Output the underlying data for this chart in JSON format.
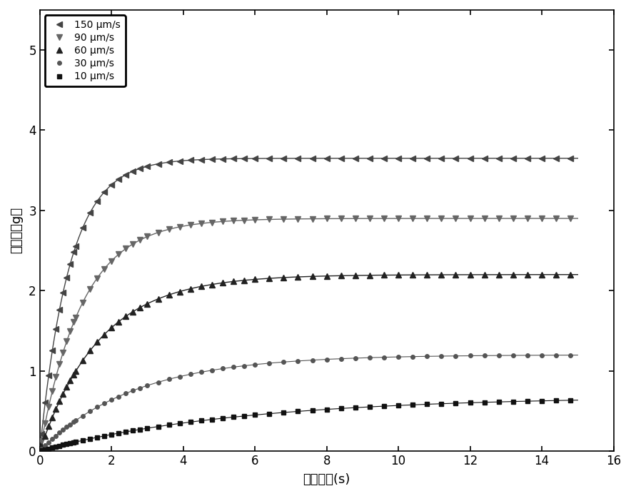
{
  "xlabel": "牵引时间(s)",
  "ylabel": "牵引力（g）",
  "xlim": [
    0,
    16
  ],
  "ylim": [
    0,
    5.5
  ],
  "xticks": [
    0,
    2,
    4,
    6,
    8,
    10,
    12,
    14,
    16
  ],
  "yticks": [
    0,
    1,
    2,
    3,
    4,
    5
  ],
  "series": [
    {
      "label": "150 μm/s",
      "plateau": 3.65,
      "rate": 1.2,
      "color": "#444444",
      "marker": "<",
      "markersize": 6,
      "linewidth": 1.0
    },
    {
      "label": "90 μm/s",
      "plateau": 2.9,
      "rate": 0.85,
      "color": "#666666",
      "marker": "v",
      "markersize": 6,
      "linewidth": 1.0
    },
    {
      "label": "60 μm/s",
      "plateau": 2.2,
      "rate": 0.6,
      "color": "#222222",
      "marker": "^",
      "markersize": 6,
      "linewidth": 1.0
    },
    {
      "label": "30 μm/s",
      "plateau": 1.2,
      "rate": 0.38,
      "color": "#555555",
      "marker": "o",
      "markersize": 4,
      "linewidth": 0.8
    },
    {
      "label": "10 μm/s",
      "plateau": 0.68,
      "rate": 0.18,
      "color": "#111111",
      "marker": "s",
      "markersize": 4,
      "linewidth": 0.8
    }
  ],
  "background_color": "#ffffff",
  "legend_fontsize": 10,
  "axis_fontsize": 13,
  "tick_fontsize": 12
}
